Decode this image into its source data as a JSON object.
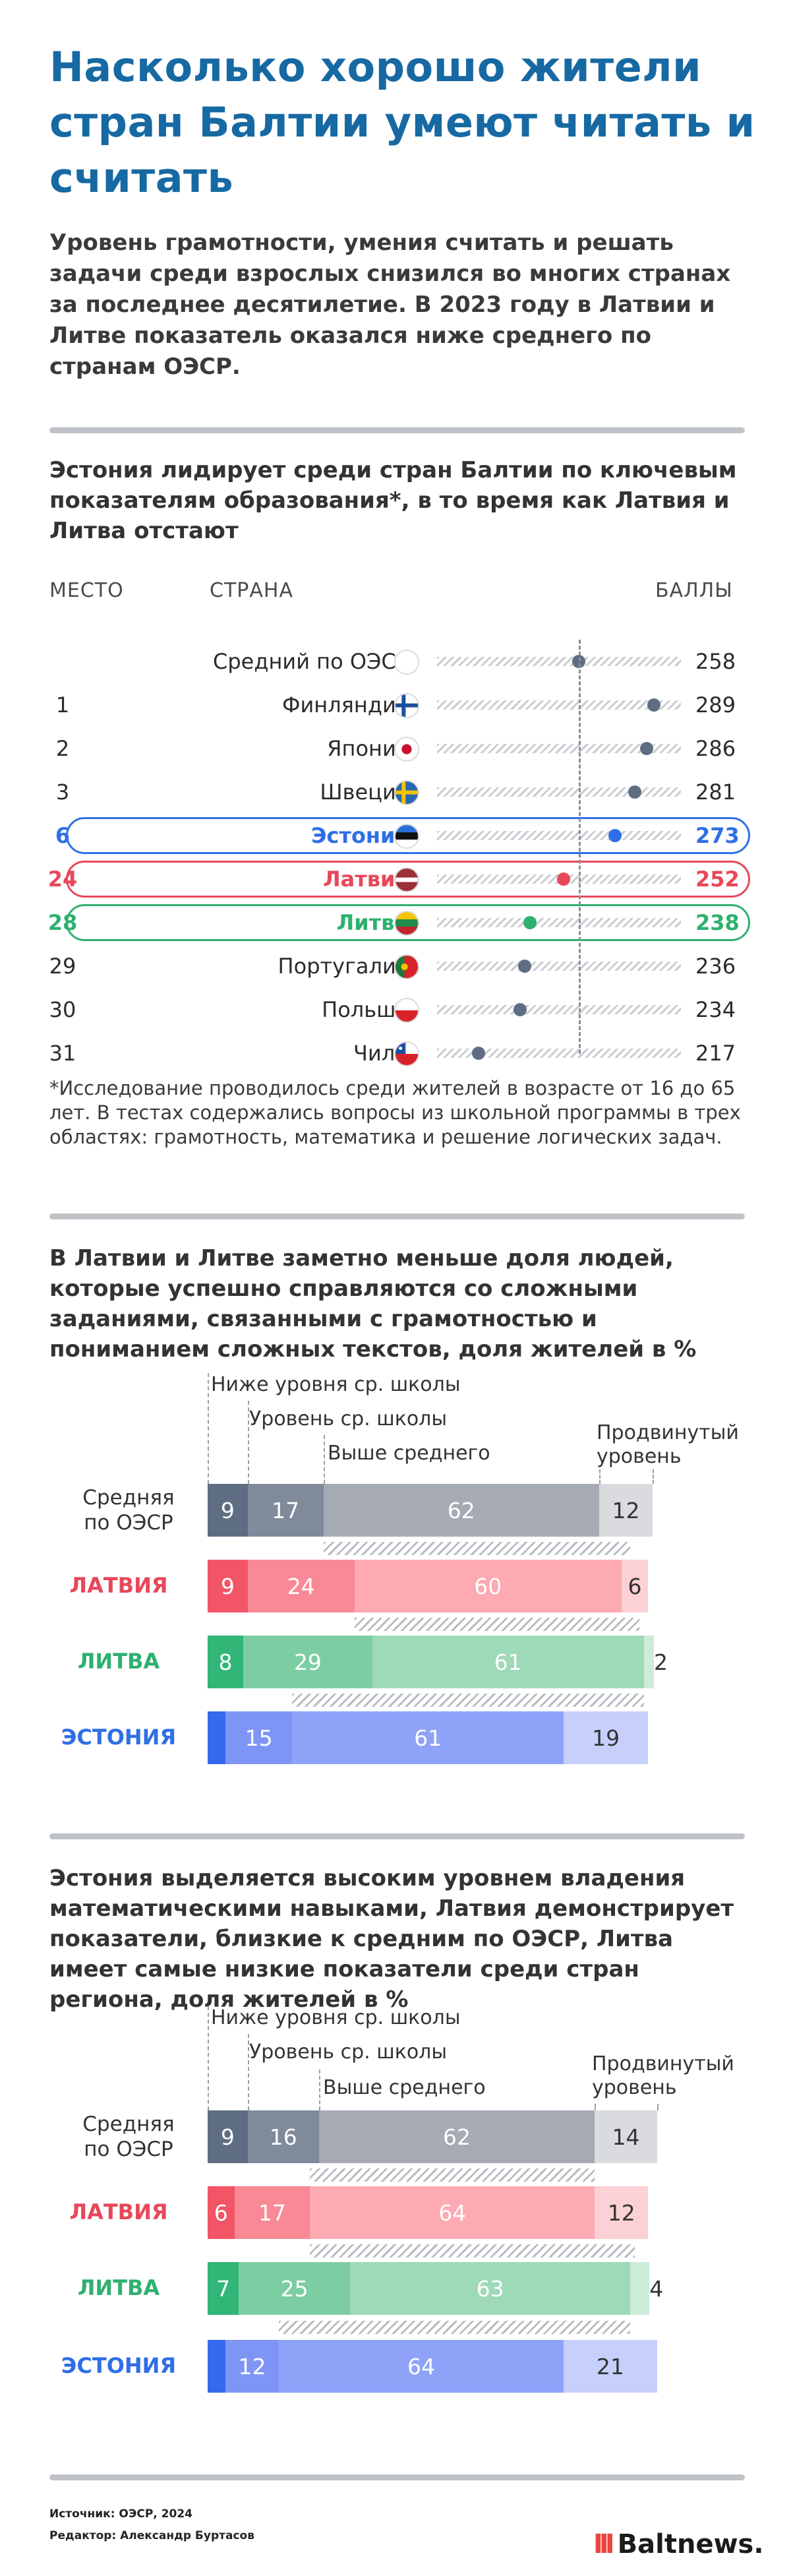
{
  "title": "Насколько хорошо жители стран Балтии умеют читать и считать",
  "subtitle": "Уровень грамотности, умения считать и решать задачи среди взрослых снизился во многих странах за последнее десятилетие. В 2023 году в Латвии и Литве показатель оказался ниже среднего по странам ОЭСР.",
  "colors": {
    "title": "#1769a3",
    "estonia": "#2f6fe6",
    "latvia": "#e8475a",
    "lithuania": "#2fb06f",
    "oecd_dark": "#5f6d82",
    "oecd_mid": "#7f8a9a",
    "oecd_light": "#a5aab3",
    "oecd_pale": "#d9dbde"
  },
  "section1": {
    "heading": "Эстония лидирует среди стран Балтии по ключевым показателям образования*, в то время как Латвия и Литва отстают",
    "col_place": "МЕСТО",
    "col_country": "СТРАНА",
    "col_score": "БАЛЛЫ",
    "footnote": "*Исследование проводилось среди жителей в возрасте от 16 до 65 лет. В тестах содержались вопросы из школьной программы в трех областях: грамотность, математика и решение логических задач."
  },
  "section2": {
    "heading": "В Латвии и Литве заметно меньше доля людей, которые успешно справляются со сложными заданиями, связанными с грамотностью и пониманием сложных текстов, доля жителей в %",
    "legend": [
      "Ниже уровня ср. школы",
      "Уровень ср. школы",
      "Выше среднего",
      "Продвинутый уровень"
    ]
  },
  "section3": {
    "heading": "Эстония выделяется высоким уровнем владения математическими навыками, Латвия демонстрирует показатели, близкие к средним по ОЭСР, Литва имеет самые низкие показатели среди стран региона, доля жителей в %",
    "legend": [
      "Ниже уровня ср. школы",
      "Уровень ср. школы",
      "Выше среднего",
      "Продвинутый уровень"
    ]
  },
  "footer": {
    "source": "Источник: ОЭСР, 2024",
    "editor": "Редактор: Александр Буртасов",
    "logo_bars": "III",
    "logo_text": "Baltnews."
  },
  "chart_data": [
    {
      "type": "scatter",
      "x": [
        "Средний по ОЭСР",
        "Финляндия",
        "Япония",
        "Швеция",
        "Эстония",
        "Латвия",
        "Литва",
        "Португалия",
        "Польша",
        "Чили"
      ],
      "places": [
        "",
        "1",
        "2",
        "3",
        "6",
        "24",
        "28",
        "29",
        "30",
        "31"
      ],
      "values": [
        258,
        289,
        286,
        281,
        273,
        252,
        238,
        236,
        234,
        217
      ],
      "highlight": [
        "",
        "",
        "",
        "",
        "estonia",
        "latvia",
        "lithuania",
        "",
        "",
        ""
      ],
      "flags": [
        "oecd",
        "finland",
        "japan",
        "sweden",
        "estonia",
        "latvia",
        "lithuania",
        "portugal",
        "poland",
        "chile"
      ]
    },
    {
      "type": "bar",
      "categories": [
        "Средняя по ОЭСР",
        "ЛАТВИЯ",
        "ЛИТВА",
        "ЭСТОНИЯ"
      ],
      "series": [
        {
          "name": "Ниже уровня ср. школы",
          "values": [
            9,
            9,
            8,
            4
          ]
        },
        {
          "name": "Уровень ср. школы",
          "values": [
            17,
            24,
            29,
            15
          ]
        },
        {
          "name": "Выше среднего",
          "values": [
            62,
            60,
            61,
            61
          ]
        },
        {
          "name": "Продвинутый уровень",
          "values": [
            12,
            6,
            2,
            19
          ]
        }
      ]
    },
    {
      "type": "bar",
      "categories": [
        "Средняя по ОЭСР",
        "ЛАТВИЯ",
        "ЛИТВА",
        "ЭСТОНИЯ"
      ],
      "series": [
        {
          "name": "Ниже уровня ср. школы",
          "values": [
            9,
            6,
            7,
            4
          ]
        },
        {
          "name": "Уровень ср. школы",
          "values": [
            16,
            17,
            25,
            12
          ]
        },
        {
          "name": "Выше среднего",
          "values": [
            62,
            64,
            63,
            64
          ]
        },
        {
          "name": "Продвинутый уровень",
          "values": [
            14,
            12,
            4,
            21
          ]
        }
      ]
    }
  ]
}
